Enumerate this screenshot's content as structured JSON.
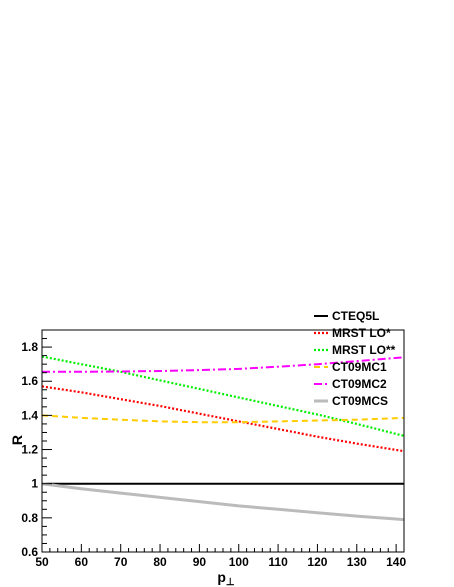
{
  "chart_data": {
    "type": "line",
    "xlabel": "p",
    "xlabel_sub": "⊥",
    "ylabel": "R",
    "xlim": [
      50,
      142
    ],
    "ylim": [
      0.6,
      1.9
    ],
    "xticks": [
      "50",
      "60",
      "70",
      "80",
      "90",
      "100",
      "110",
      "120",
      "130",
      "140"
    ],
    "yticks": [
      "0.6",
      "0.8",
      "1",
      "1.2",
      "1.4",
      "1.6",
      "1.8"
    ],
    "legend_position": "top-right",
    "series": [
      {
        "name": "CTEQ5L",
        "color": "#000000",
        "style": "solid",
        "x": [
          50,
          60,
          70,
          80,
          90,
          100,
          110,
          120,
          130,
          142
        ],
        "y": [
          1.0,
          1.0,
          1.0,
          1.0,
          1.0,
          1.0,
          1.0,
          1.0,
          1.0,
          1.0
        ]
      },
      {
        "name": "MRST LO*",
        "color": "#ff0000",
        "style": "dotted",
        "x": [
          50,
          60,
          70,
          80,
          90,
          100,
          110,
          120,
          130,
          142
        ],
        "y": [
          1.57,
          1.535,
          1.495,
          1.455,
          1.41,
          1.365,
          1.32,
          1.275,
          1.235,
          1.19
        ]
      },
      {
        "name": "MRST LO**",
        "color": "#00ee00",
        "style": "dotted",
        "x": [
          50,
          60,
          70,
          80,
          90,
          100,
          110,
          120,
          130,
          142
        ],
        "y": [
          1.745,
          1.7,
          1.655,
          1.605,
          1.555,
          1.505,
          1.455,
          1.405,
          1.35,
          1.28
        ]
      },
      {
        "name": "CT09MC1",
        "color": "#ffcc00",
        "style": "dashed",
        "x": [
          50,
          60,
          70,
          80,
          90,
          100,
          110,
          120,
          130,
          142
        ],
        "y": [
          1.4,
          1.385,
          1.375,
          1.365,
          1.36,
          1.36,
          1.365,
          1.37,
          1.375,
          1.385
        ]
      },
      {
        "name": "CT09MC2",
        "color": "#ff00ff",
        "style": "dashdot",
        "x": [
          50,
          60,
          70,
          80,
          90,
          100,
          110,
          120,
          130,
          142
        ],
        "y": [
          1.655,
          1.655,
          1.657,
          1.66,
          1.665,
          1.672,
          1.685,
          1.7,
          1.718,
          1.74
        ]
      },
      {
        "name": "CT09MCS",
        "color": "#bbbbbb",
        "style": "solid-thick",
        "x": [
          50,
          60,
          70,
          80,
          90,
          100,
          110,
          120,
          130,
          142
        ],
        "y": [
          1.0,
          0.97,
          0.945,
          0.92,
          0.895,
          0.87,
          0.85,
          0.83,
          0.81,
          0.79
        ]
      }
    ]
  }
}
